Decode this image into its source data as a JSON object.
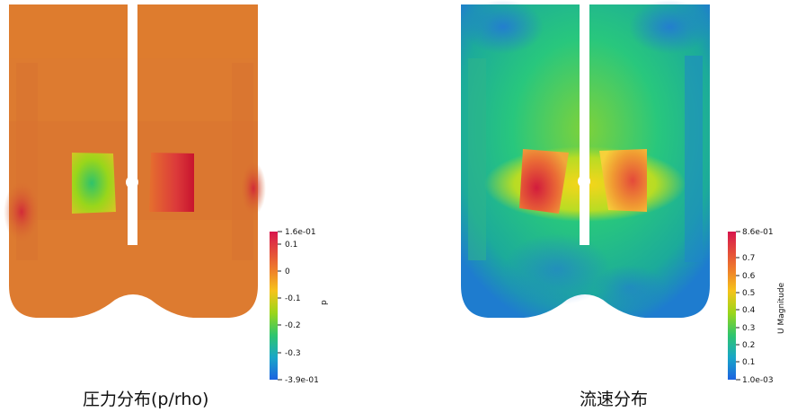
{
  "panels": [
    {
      "caption": "圧力分布(p/rho)",
      "colorbar": {
        "title": "p",
        "max_label": "1.6e-01",
        "min_label": "-3.9e-01",
        "ticks": [
          "0.1",
          "0",
          "-0.1",
          "-0.2",
          "-0.3"
        ]
      }
    },
    {
      "caption": "流速分布",
      "colorbar": {
        "title": "U Magnitude",
        "max_label": "8.6e-01",
        "min_label": "1.0e-03",
        "ticks": [
          "0.7",
          "0.6",
          "0.5",
          "0.4",
          "0.3",
          "0.2",
          "0.1"
        ]
      }
    }
  ]
}
